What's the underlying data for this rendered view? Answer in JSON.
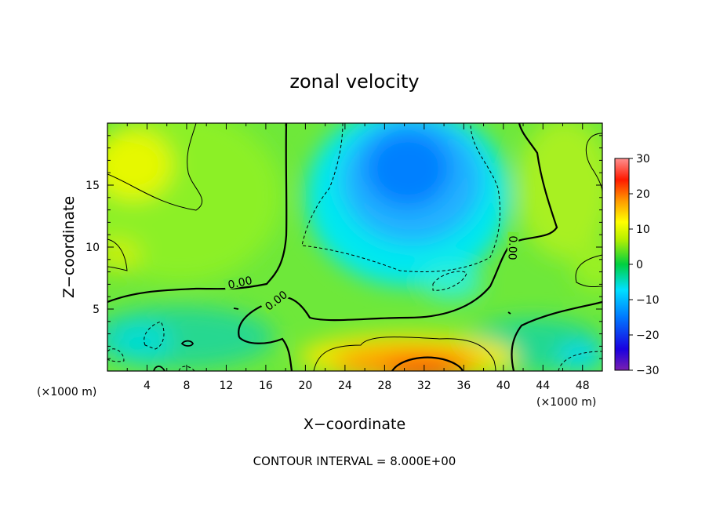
{
  "chart_data": {
    "type": "heatmap",
    "title": "zonal velocity",
    "xlabel": "X−coordinate",
    "ylabel": "Z−coordinate",
    "x_unit_label": "(×1000 m)",
    "x_unit_label_right": "(×1000 m)",
    "xlim": [
      0,
      50
    ],
    "ylim": [
      0,
      20
    ],
    "x_ticks": [
      4,
      8,
      12,
      16,
      20,
      24,
      28,
      32,
      36,
      40,
      44,
      48
    ],
    "y_ticks": [
      5,
      10,
      15
    ],
    "colorbar": {
      "range": [
        -30,
        30
      ],
      "ticks": [
        30,
        20,
        10,
        0,
        -10,
        -20,
        -30
      ],
      "tick_labels": [
        "30",
        "20",
        "10",
        "0",
        "−10",
        "−20",
        "−30"
      ],
      "colormap": "rainbow"
    },
    "contour_interval_text": "CONTOUR INTERVAL = 8.000E+00",
    "contour_labels": [
      "0.00",
      "0.00",
      "0.00"
    ],
    "features": [
      {
        "name": "negative core",
        "x": 31,
        "z": 15.5,
        "value": -13
      },
      {
        "name": "positive jet near surface",
        "x": 32,
        "z": 0.5,
        "value": 20
      },
      {
        "name": "positive upper-left",
        "x": 2.5,
        "z": 16.5,
        "value": 11
      }
    ]
  }
}
